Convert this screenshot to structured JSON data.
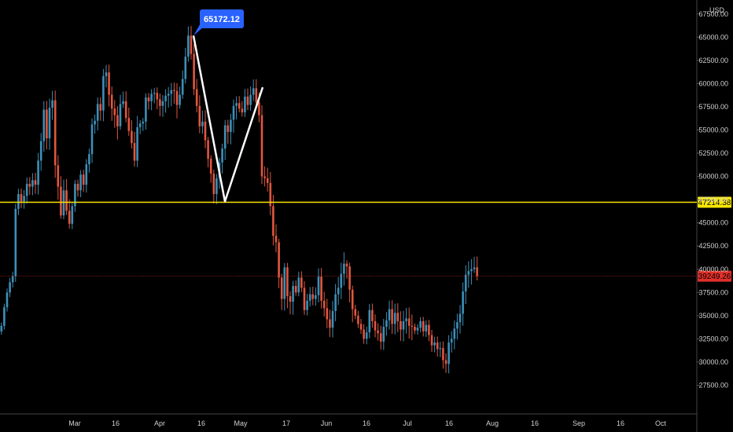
{
  "chart_data": {
    "type": "candlestick",
    "currency": "USD",
    "y_axis": {
      "ylim": [
        25000,
        68500
      ],
      "ticks": [
        "27500.00",
        "30000.00",
        "32500.00",
        "35000.00",
        "37500.00",
        "40000.00",
        "42500.00",
        "45000.00",
        "47500.00",
        "50000.00",
        "52500.00",
        "55000.00",
        "57500.00",
        "60000.00",
        "62500.00",
        "65000.00",
        "67500.00"
      ]
    },
    "x_axis": {
      "ticks": [
        "Mar",
        "16",
        "Apr",
        "16",
        "May",
        "17",
        "Jun",
        "16",
        "Jul",
        "16",
        "Aug",
        "16",
        "Sep",
        "16",
        "Oct"
      ]
    },
    "horizontal_levels": [
      {
        "value": 47214.38,
        "label": "47214.38",
        "color": "#f7e600"
      },
      {
        "value": 39249.26,
        "label": "39249.26",
        "color": "#e0302a"
      }
    ],
    "peak_callout": {
      "label": "65172.12",
      "value": 65172.12
    },
    "pattern_points": [
      65172.12,
      47300,
      59600
    ],
    "up_color": "#3d8fb8",
    "down_color": "#e0573f",
    "candles_close": [
      33900,
      35900,
      37500,
      38600,
      39250,
      46500,
      48100,
      47300,
      47900,
      49200,
      48900,
      49600,
      49100,
      51700,
      53800,
      57200,
      54100,
      57400,
      58200,
      51200,
      48900,
      45800,
      48500,
      46300,
      44900,
      46800,
      49200,
      48500,
      50200,
      49100,
      51300,
      52400,
      55600,
      56000,
      57800,
      57100,
      60800,
      61200,
      58800,
      57300,
      56600,
      55400,
      57800,
      58100,
      56300,
      54900,
      53600,
      51700,
      55300,
      55700,
      55900,
      58500,
      58100,
      58900,
      59000,
      58300,
      57600,
      58100,
      58700,
      58900,
      59300,
      59200,
      57700,
      58800,
      60500,
      62900,
      65172,
      63200,
      59400,
      57600,
      55400,
      55900,
      53900,
      51900,
      50300,
      48100,
      49800,
      51500,
      53000,
      55500,
      54800,
      56100,
      57600,
      57900,
      57300,
      56900,
      58600,
      57700,
      58800,
      59500,
      58000,
      56600,
      50000,
      49800,
      49300,
      46800,
      43600,
      42900,
      39100,
      36800,
      40200,
      37100,
      36500,
      38200,
      37500,
      39100,
      38000,
      35600,
      36600,
      37300,
      36800,
      37200,
      39200,
      36600,
      35800,
      34600,
      33700,
      35500,
      37300,
      38000,
      39500,
      40600,
      40300,
      37800,
      35700,
      35000,
      34100,
      33500,
      32500,
      33200,
      35600,
      34400,
      33400,
      33100,
      32200,
      33800,
      34500,
      35700,
      34100,
      35300,
      34400,
      33500,
      34400,
      34700,
      33900,
      33800,
      33400,
      33700,
      34400,
      33300,
      34000,
      32900,
      31800,
      32100,
      31400,
      31500,
      30200,
      29800,
      32100,
      32500,
      33600,
      34300,
      35200,
      37600,
      39400,
      39800,
      40000,
      40200,
      39250
    ]
  }
}
